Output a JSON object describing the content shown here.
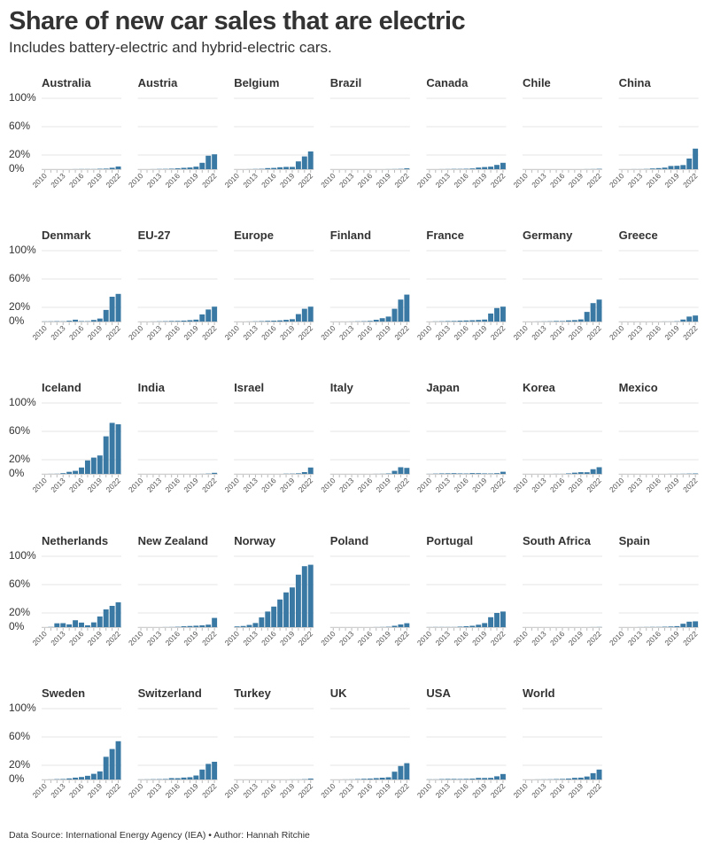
{
  "title": "Share of new car sales that are electric",
  "subtitle": "Includes battery-electric and hybrid-electric cars.",
  "footer": "Data Source: International Energy Agency (IEA) • Author: Hannah Ritchie",
  "colors": {
    "bar": "#3a79a3",
    "grid": "#e4e4e4",
    "text": "#333333"
  },
  "chart_data": {
    "type": "bar",
    "layout": "small-multiples",
    "x": [
      2010,
      2011,
      2012,
      2013,
      2014,
      2015,
      2016,
      2017,
      2018,
      2019,
      2020,
      2021,
      2022
    ],
    "x_ticks": [
      "2010",
      "2013",
      "2016",
      "2019",
      "2022"
    ],
    "y_ticks": [
      "100%",
      "60%",
      "20%",
      "0%"
    ],
    "ylim": [
      0,
      100
    ],
    "grid": true,
    "series": [
      {
        "name": "Australia",
        "values": [
          0,
          0,
          0,
          0,
          0,
          0.1,
          0.2,
          0.2,
          0.2,
          0.6,
          0.8,
          2.0,
          3.8
        ]
      },
      {
        "name": "Austria",
        "values": [
          0,
          0,
          0.1,
          0.3,
          0.4,
          0.7,
          1.2,
          1.9,
          2.4,
          3.6,
          9.0,
          19.0,
          21.0
        ]
      },
      {
        "name": "Belgium",
        "values": [
          0,
          0,
          0.1,
          0.3,
          0.5,
          1.5,
          1.8,
          2.7,
          3.2,
          3.2,
          11.0,
          18.0,
          25.0
        ]
      },
      {
        "name": "Brazil",
        "values": [
          0,
          0,
          0,
          0,
          0,
          0,
          0,
          0,
          0,
          0.1,
          0.2,
          0.4,
          1.2
        ]
      },
      {
        "name": "Canada",
        "values": [
          0,
          0,
          0.1,
          0.2,
          0.4,
          0.4,
          0.6,
          1.0,
          2.3,
          3.0,
          3.6,
          6.0,
          9.0
        ]
      },
      {
        "name": "Chile",
        "values": [
          0,
          0,
          0,
          0,
          0,
          0,
          0,
          0,
          0,
          0,
          0.1,
          0.2,
          0.5
        ]
      },
      {
        "name": "China",
        "values": [
          0,
          0,
          0.1,
          0.1,
          0.3,
          1.0,
          1.5,
          2.2,
          4.5,
          4.8,
          5.8,
          15.0,
          29.0
        ]
      },
      {
        "name": "Denmark",
        "values": [
          0.2,
          0.3,
          0.5,
          0.3,
          1.1,
          2.6,
          0.6,
          0.5,
          2.2,
          4.2,
          16.4,
          35.0,
          39.0
        ]
      },
      {
        "name": "EU-27",
        "values": [
          0,
          0,
          0.1,
          0.3,
          0.5,
          0.8,
          0.9,
          1.3,
          1.9,
          2.7,
          10.0,
          17.0,
          21.0
        ]
      },
      {
        "name": "Europe",
        "values": [
          0,
          0,
          0.1,
          0.3,
          0.6,
          1.0,
          1.2,
          1.6,
          2.4,
          3.3,
          10.5,
          18.0,
          21.0
        ]
      },
      {
        "name": "Finland",
        "values": [
          0,
          0,
          0,
          0.1,
          0.3,
          0.5,
          0.9,
          2.5,
          4.7,
          7.0,
          18.0,
          31.0,
          38.0
        ]
      },
      {
        "name": "France",
        "values": [
          0,
          0.2,
          0.4,
          0.7,
          0.8,
          1.2,
          1.5,
          1.8,
          2.2,
          2.8,
          11.3,
          19.0,
          21.0
        ]
      },
      {
        "name": "Germany",
        "values": [
          0,
          0,
          0.1,
          0.2,
          0.4,
          0.8,
          0.7,
          1.6,
          2.0,
          3.0,
          13.6,
          26.0,
          31.0
        ]
      },
      {
        "name": "Greece",
        "values": [
          0,
          0,
          0,
          0,
          0,
          0,
          0,
          0.1,
          0.1,
          0.4,
          2.8,
          7.0,
          8.5
        ]
      },
      {
        "name": "Iceland",
        "values": [
          0,
          0.1,
          0.2,
          1.0,
          2.9,
          4.3,
          9.0,
          19.0,
          23.0,
          26.0,
          53.0,
          72.0,
          70.0
        ]
      },
      {
        "name": "India",
        "values": [
          0,
          0,
          0,
          0,
          0,
          0,
          0,
          0,
          0,
          0,
          0.1,
          0.4,
          1.5
        ]
      },
      {
        "name": "Israel",
        "values": [
          0,
          0,
          0,
          0,
          0,
          0,
          0,
          0,
          0.3,
          0.4,
          0.8,
          2.5,
          9.0
        ]
      },
      {
        "name": "Italy",
        "values": [
          0,
          0,
          0,
          0,
          0,
          0,
          0,
          0.1,
          0.2,
          0.6,
          4.3,
          9.4,
          8.5
        ]
      },
      {
        "name": "Japan",
        "values": [
          0.1,
          0.4,
          0.7,
          0.8,
          1.0,
          0.7,
          0.6,
          1.1,
          1.0,
          0.7,
          0.6,
          1.0,
          3.0
        ]
      },
      {
        "name": "Korea",
        "values": [
          0,
          0,
          0,
          0,
          0,
          0.1,
          0.1,
          0.7,
          1.7,
          2.4,
          2.3,
          6.6,
          9.4
        ]
      },
      {
        "name": "Mexico",
        "values": [
          0,
          0,
          0,
          0,
          0,
          0,
          0,
          0,
          0.1,
          0.1,
          0.2,
          0.4,
          0.6
        ]
      },
      {
        "name": "Netherlands",
        "values": [
          0,
          0.3,
          5.4,
          5.6,
          3.9,
          9.7,
          6.4,
          2.6,
          6.7,
          15.0,
          25.0,
          30.0,
          35.0
        ]
      },
      {
        "name": "New Zealand",
        "values": [
          0,
          0,
          0,
          0,
          0.1,
          0.2,
          0.5,
          1.2,
          1.6,
          2.0,
          2.5,
          3.5,
          13.0
        ]
      },
      {
        "name": "Norway",
        "values": [
          1.0,
          1.6,
          3.1,
          5.8,
          13.7,
          22.0,
          29.0,
          39.0,
          49.0,
          56.0,
          74.0,
          86.0,
          88.0
        ]
      },
      {
        "name": "Poland",
        "values": [
          0,
          0,
          0,
          0,
          0,
          0,
          0,
          0.1,
          0.2,
          0.5,
          1.9,
          3.8,
          5.5
        ]
      },
      {
        "name": "Portugal",
        "values": [
          0.1,
          0.2,
          0.2,
          0.2,
          0.2,
          0.7,
          1.3,
          1.9,
          3.4,
          5.7,
          14.0,
          20.0,
          22.0
        ]
      },
      {
        "name": "South Africa",
        "values": [
          0,
          0,
          0,
          0,
          0,
          0,
          0,
          0,
          0,
          0,
          0,
          0.1,
          0.2
        ]
      },
      {
        "name": "Spain",
        "values": [
          0,
          0,
          0,
          0.1,
          0.2,
          0.3,
          0.3,
          0.6,
          0.9,
          1.4,
          4.8,
          7.7,
          8.2
        ]
      },
      {
        "name": "Sweden",
        "values": [
          0,
          0.1,
          0.5,
          0.7,
          1.5,
          2.6,
          3.5,
          5.2,
          8.0,
          11.4,
          32.0,
          43.0,
          54.0
        ]
      },
      {
        "name": "Switzerland",
        "values": [
          0.1,
          0.2,
          0.4,
          0.5,
          0.7,
          1.9,
          1.8,
          2.7,
          3.2,
          5.6,
          14.0,
          22.0,
          25.0
        ]
      },
      {
        "name": "Turkey",
        "values": [
          0,
          0,
          0,
          0,
          0,
          0,
          0,
          0,
          0,
          0.1,
          0.1,
          0.4,
          1.3
        ]
      },
      {
        "name": "UK",
        "values": [
          0,
          0,
          0.1,
          0.2,
          0.6,
          1.0,
          1.3,
          1.9,
          2.5,
          3.1,
          11.0,
          19.0,
          23.0
        ]
      },
      {
        "name": "USA",
        "values": [
          0.2,
          0.2,
          0.6,
          0.8,
          0.8,
          0.7,
          0.9,
          1.2,
          2.2,
          2.1,
          2.3,
          4.5,
          7.7
        ]
      },
      {
        "name": "World",
        "values": [
          0,
          0,
          0.1,
          0.2,
          0.3,
          0.6,
          0.8,
          1.3,
          2.3,
          2.6,
          4.2,
          8.9,
          14.0
        ]
      }
    ]
  }
}
